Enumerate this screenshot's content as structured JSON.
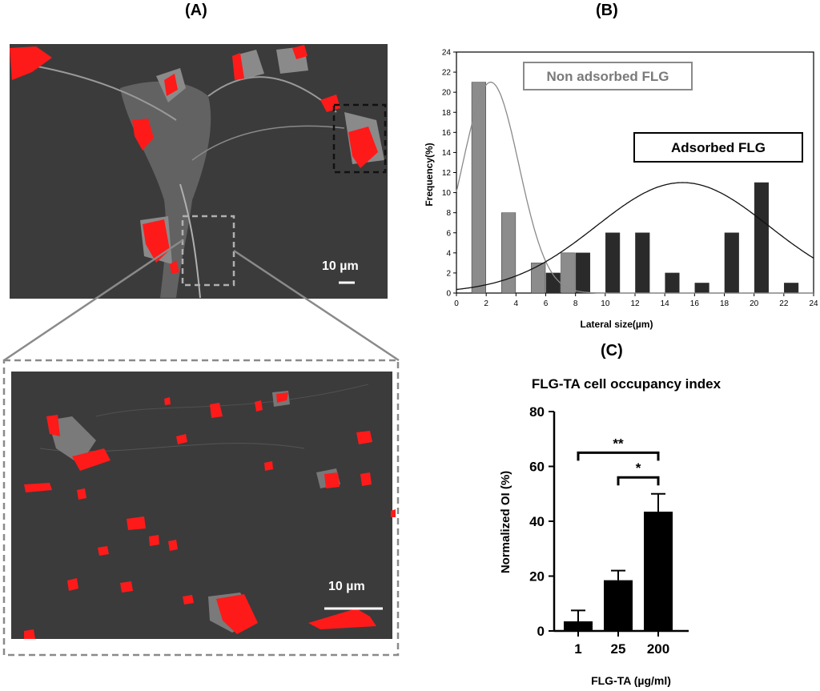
{
  "panels": {
    "a_label": "(A)",
    "b_label": "(B)",
    "c_label": "(C)"
  },
  "sem": {
    "top_scale_label": "10 µm",
    "bottom_scale_label": "10 µm",
    "highlight_color": "#ff1a1a",
    "background_color": "#3b3b3b"
  },
  "chart_data": [
    {
      "type": "bar",
      "title": "",
      "xlabel": "Lateral size(µm)",
      "ylabel": "Frequency(%)",
      "xlim": [
        0,
        24
      ],
      "ylim": [
        0,
        24
      ],
      "xticks": [
        0,
        2,
        4,
        6,
        8,
        10,
        12,
        14,
        16,
        18,
        20,
        22,
        24
      ],
      "yticks": [
        0,
        2,
        4,
        6,
        8,
        10,
        12,
        14,
        16,
        18,
        20,
        22,
        24
      ],
      "series": [
        {
          "name": "Non adsorbed FLG",
          "color": "#8c8c8c",
          "x": [
            1.5,
            3.5,
            5.5,
            7.5
          ],
          "values": [
            21,
            8,
            3,
            4
          ],
          "fit": "gaussian",
          "fit_params": {
            "mean": 2.3,
            "sd": 1.9,
            "peak": 21
          }
        },
        {
          "name": "Adsorbed FLG",
          "color": "#2a2a2a",
          "x": [
            6.5,
            8.5,
            10.5,
            12.5,
            14.5,
            16.5,
            18.5,
            20.5,
            22.5
          ],
          "values": [
            2,
            4,
            6,
            6,
            2,
            1,
            6,
            11,
            1
          ],
          "fit": "gaussian",
          "fit_params": {
            "mean": 15.2,
            "sd": 5.8,
            "peak": 11
          }
        }
      ],
      "legend_labels": [
        "Non adsorbed FLG",
        "Adsorbed FLG"
      ]
    },
    {
      "type": "bar",
      "title": "FLG-TA cell occupancy index",
      "xlabel": "FLG-TA (µg/ml)",
      "ylabel": "Normalized OI (%)",
      "ylim": [
        0,
        80
      ],
      "yticks": [
        0,
        20,
        40,
        60,
        80
      ],
      "categories": [
        "1",
        "25",
        "200"
      ],
      "values": [
        3.5,
        18.5,
        43.5
      ],
      "errors": [
        4,
        3.5,
        6.5
      ],
      "color": "#000000",
      "significance": [
        {
          "from": "1",
          "to": "200",
          "label": "**"
        },
        {
          "from": "25",
          "to": "200",
          "label": "*"
        }
      ]
    }
  ]
}
